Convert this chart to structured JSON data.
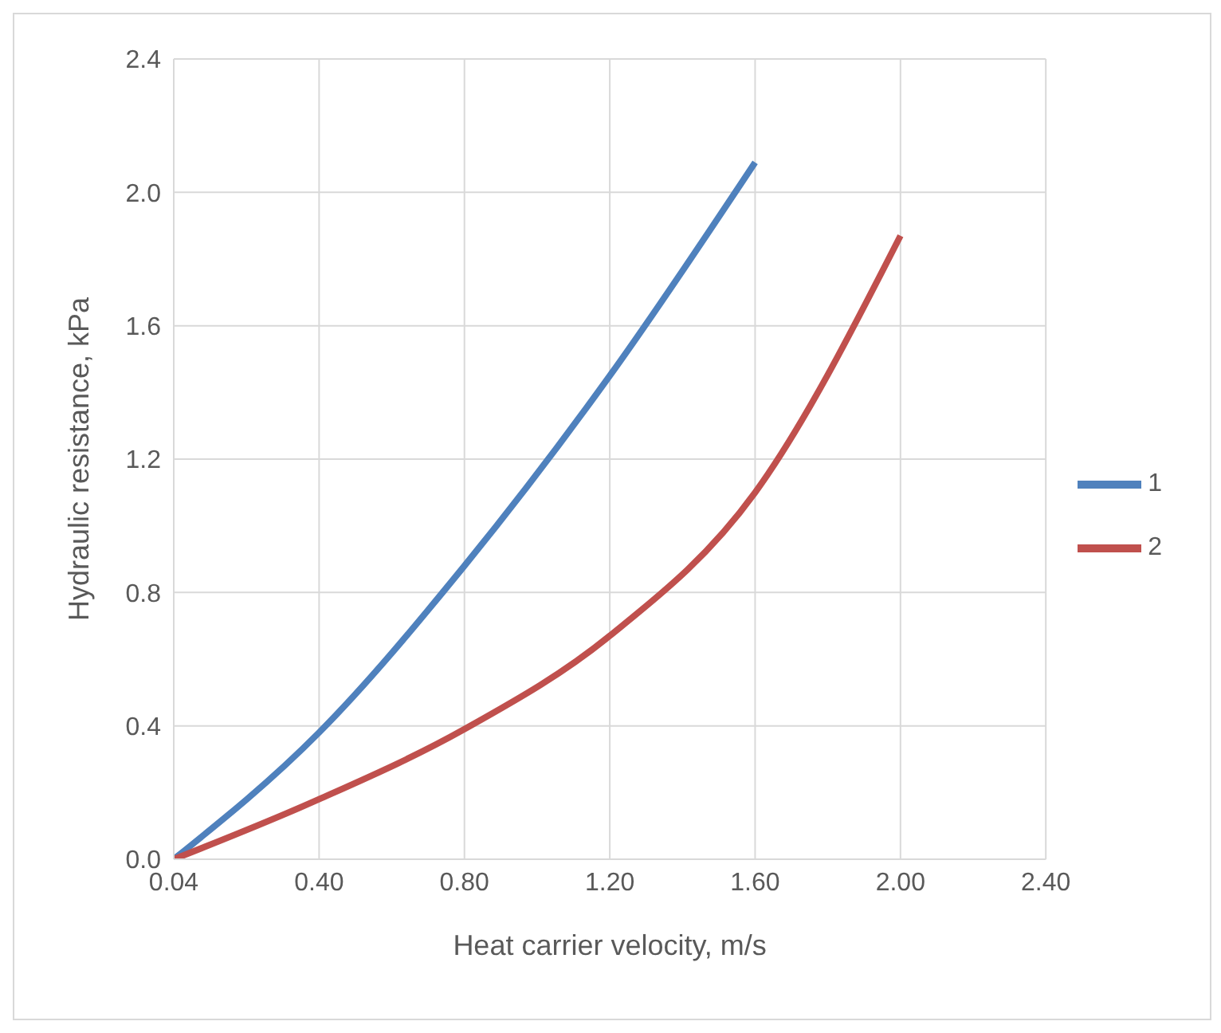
{
  "chart_data": {
    "type": "line",
    "xlabel": "Heat carrier velocity, m/s",
    "ylabel": "Hydraulic resistance, kPa",
    "categories": [
      "0.04",
      "0.40",
      "0.80",
      "1.20",
      "1.60",
      "2.00",
      "2.40"
    ],
    "series": [
      {
        "name": "1",
        "color": "#4f81bd",
        "values": [
          0,
          0.38,
          0.88,
          1.45,
          2.09,
          null,
          null
        ]
      },
      {
        "name": "2",
        "color": "#c0504d",
        "values": [
          0,
          0.18,
          0.39,
          0.67,
          1.1,
          1.87,
          null
        ]
      }
    ],
    "ylim": [
      0,
      2.4
    ],
    "yticks": [
      {
        "value": 0,
        "label": "0.0"
      },
      {
        "value": 0.4,
        "label": "0.4"
      },
      {
        "value": 0.8,
        "label": "0.8"
      },
      {
        "value": 1.2,
        "label": "1.2"
      },
      {
        "value": 1.6,
        "label": "1.6"
      },
      {
        "value": 2,
        "label": "2.0"
      },
      {
        "value": 2.4,
        "label": "2.4"
      }
    ],
    "grid": true,
    "legend": "right",
    "marker": "none",
    "line_style": "solid"
  }
}
